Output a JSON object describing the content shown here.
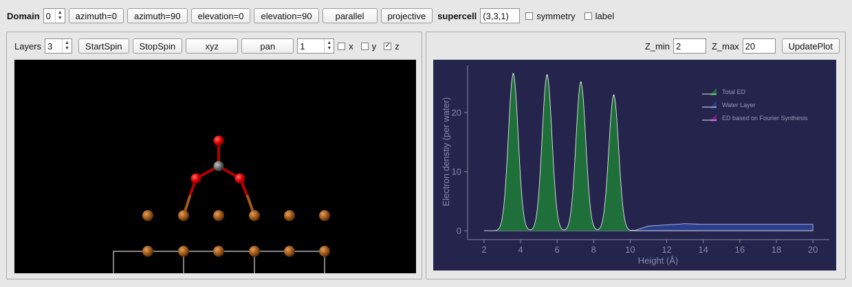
{
  "toolbar": {
    "domain_label": "Domain",
    "domain_value": "0",
    "buttons": {
      "azimuth0": "azimuth=0",
      "azimuth90": "azimuth=90",
      "elevation0": "elevation=0",
      "elevation90": "elevation=90",
      "parallel": "parallel",
      "projective": "projective"
    },
    "supercell_label": "supercell",
    "supercell_value": "(3,3,1)",
    "symmetry_label": "symmetry",
    "symmetry_checked": false,
    "label_label": "label",
    "label_checked": false
  },
  "left_panel": {
    "layers_label": "Layers",
    "layers_value": "3",
    "start_spin": "StartSpin",
    "stop_spin": "StopSpin",
    "xyz": "xyz",
    "pan": "pan",
    "step_value": "1",
    "x_label": "x",
    "y_label": "y",
    "z_label": "z",
    "x_checked": false,
    "y_checked": false,
    "z_checked": true,
    "check_mark": "✓"
  },
  "right_panel": {
    "zmin_label": "Z_min",
    "zmin_value": "2",
    "zmax_label": "Z_max",
    "zmax_value": "20",
    "update_plot": "UpdatePlot"
  },
  "colors": {
    "plot_bg": "#24244d",
    "total_ed": "#1f6f3a",
    "water_layer": "#2a3e8c",
    "fourier": "#7a1f8c",
    "oxygen": "#e00000",
    "carbon": "#6a6a6a",
    "metal": "#a25a18"
  },
  "chart_data": {
    "type": "area",
    "title": "",
    "xlabel": "Height (Å)",
    "ylabel": "Electron denstiy (per water)",
    "xlim": [
      1.1,
      20.9
    ],
    "ylim": [
      -1.5,
      28
    ],
    "x_ticks": [
      2,
      4,
      6,
      8,
      10,
      12,
      14,
      16,
      18,
      20
    ],
    "y_ticks": [
      0,
      10,
      20
    ],
    "legend_position": "top-right",
    "series": [
      {
        "name": "Total ED",
        "peaks": [
          {
            "x": 3.6,
            "y": 26.5
          },
          {
            "x": 5.45,
            "y": 26.3
          },
          {
            "x": 7.3,
            "y": 25.1
          },
          {
            "x": 9.1,
            "y": 22.9
          }
        ],
        "baseline": 0
      },
      {
        "name": "Water Layer",
        "x": [
          2,
          10.3,
          11,
          12,
          13,
          14,
          16,
          18,
          20
        ],
        "values": [
          0,
          0.1,
          0.8,
          1.0,
          1.2,
          1.1,
          1.1,
          1.1,
          1.1
        ]
      },
      {
        "name": "ED based on Fourier Synthesis",
        "x": [],
        "values": []
      }
    ]
  }
}
